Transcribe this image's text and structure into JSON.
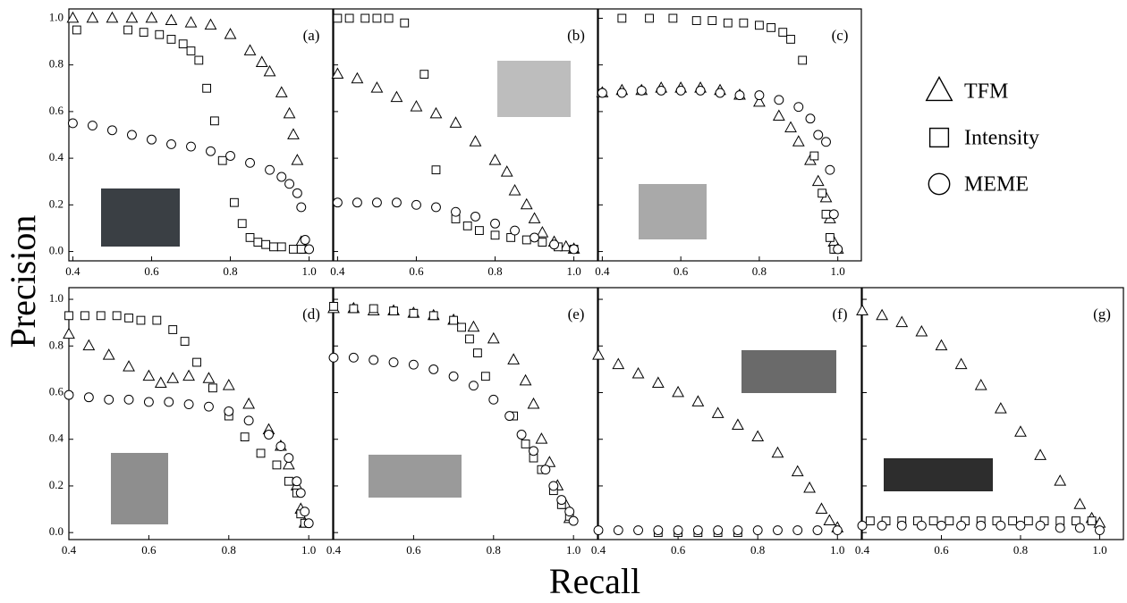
{
  "figure": {
    "ylabel": "Precision",
    "xlabel": "Recall"
  },
  "chart_data": [
    {
      "type": "scatter",
      "title": "(a)",
      "xlim": [
        0.39,
        1.06
      ],
      "ylim": [
        -0.04,
        1.04
      ],
      "ytick_labels": true,
      "xticks": [
        0.4,
        0.6,
        0.8,
        {
          "value": 1,
          "label": "1.0"
        }
      ],
      "yticks": [
        {
          "value": 0,
          "label": "0.0"
        },
        0.2,
        0.4,
        0.6,
        0.8,
        {
          "value": 1,
          "label": "1.0"
        }
      ],
      "series": [
        {
          "name": "TFM",
          "marker": "triangle",
          "color": "#000000",
          "x": [
            0.4,
            0.45,
            0.5,
            0.55,
            0.6,
            0.65,
            0.7,
            0.75,
            0.8,
            0.85,
            0.88,
            0.9,
            0.93,
            0.95,
            0.96,
            0.97,
            0.98,
            0.99
          ],
          "values": [
            1.0,
            1.0,
            1.0,
            1.0,
            1.0,
            0.99,
            0.98,
            0.97,
            0.93,
            0.86,
            0.81,
            0.77,
            0.68,
            0.59,
            0.5,
            0.39,
            0.04,
            0.01
          ]
        },
        {
          "name": "Intensity",
          "marker": "square",
          "color": "#000000",
          "x": [
            0.41,
            0.54,
            0.58,
            0.62,
            0.65,
            0.68,
            0.7,
            0.72,
            0.74,
            0.76,
            0.78,
            0.81,
            0.83,
            0.85,
            0.87,
            0.89,
            0.91,
            0.93,
            0.96,
            0.98
          ],
          "values": [
            0.95,
            0.95,
            0.94,
            0.93,
            0.91,
            0.89,
            0.86,
            0.82,
            0.7,
            0.56,
            0.39,
            0.21,
            0.12,
            0.06,
            0.04,
            0.03,
            0.02,
            0.02,
            0.01,
            0.01
          ]
        },
        {
          "name": "MEME",
          "marker": "circle",
          "color": "#000000",
          "x": [
            0.4,
            0.45,
            0.5,
            0.55,
            0.6,
            0.65,
            0.7,
            0.75,
            0.8,
            0.85,
            0.9,
            0.93,
            0.95,
            0.97,
            0.98,
            0.99,
            1.0
          ],
          "values": [
            0.55,
            0.54,
            0.52,
            0.5,
            0.48,
            0.46,
            0.45,
            0.43,
            0.41,
            0.38,
            0.35,
            0.32,
            0.29,
            0.25,
            0.19,
            0.05,
            0.01
          ]
        }
      ]
    },
    {
      "type": "scatter",
      "title": "(b)",
      "xlim": [
        0.39,
        1.06
      ],
      "ylim": [
        -0.04,
        1.04
      ],
      "ytick_labels": false,
      "xticks": [
        0.4,
        0.6,
        0.8,
        {
          "value": 1,
          "label": "1.0"
        }
      ],
      "yticks": [
        {
          "value": 0,
          "label": "0.0"
        },
        0.2,
        0.4,
        0.6,
        0.8,
        {
          "value": 1,
          "label": "1.0"
        }
      ],
      "series": [
        {
          "name": "TFM",
          "marker": "triangle",
          "color": "#000000",
          "x": [
            0.4,
            0.45,
            0.5,
            0.55,
            0.6,
            0.65,
            0.7,
            0.75,
            0.8,
            0.83,
            0.85,
            0.88,
            0.9,
            0.92,
            0.95,
            0.98,
            1.0
          ],
          "values": [
            0.76,
            0.74,
            0.7,
            0.66,
            0.62,
            0.59,
            0.55,
            0.47,
            0.39,
            0.34,
            0.26,
            0.2,
            0.14,
            0.08,
            0.04,
            0.02,
            0.01
          ]
        },
        {
          "name": "Intensity",
          "marker": "square",
          "color": "#000000",
          "x": [
            0.4,
            0.43,
            0.47,
            0.5,
            0.53,
            0.57,
            0.62,
            0.65,
            0.7,
            0.73,
            0.76,
            0.8,
            0.84,
            0.88,
            0.92,
            0.96,
            1.0
          ],
          "values": [
            1.0,
            1.0,
            1.0,
            1.0,
            1.0,
            0.98,
            0.76,
            0.35,
            0.14,
            0.11,
            0.09,
            0.07,
            0.06,
            0.05,
            0.04,
            0.02,
            0.01
          ]
        },
        {
          "name": "MEME",
          "marker": "circle",
          "color": "#000000",
          "x": [
            0.4,
            0.45,
            0.5,
            0.55,
            0.6,
            0.65,
            0.7,
            0.75,
            0.8,
            0.85,
            0.9,
            0.95,
            1.0
          ],
          "values": [
            0.21,
            0.21,
            0.21,
            0.21,
            0.2,
            0.19,
            0.17,
            0.15,
            0.12,
            0.09,
            0.06,
            0.03,
            0.01
          ]
        }
      ]
    },
    {
      "type": "scatter",
      "title": "(c)",
      "xlim": [
        0.39,
        1.06
      ],
      "ylim": [
        -0.04,
        1.04
      ],
      "ytick_labels": false,
      "xticks": [
        0.4,
        0.6,
        0.8,
        {
          "value": 1,
          "label": "1.0"
        }
      ],
      "yticks": [
        {
          "value": 0,
          "label": "0.0"
        },
        0.2,
        0.4,
        0.6,
        0.8,
        {
          "value": 1,
          "label": "1.0"
        }
      ],
      "series": [
        {
          "name": "TFM",
          "marker": "triangle",
          "color": "#000000",
          "x": [
            0.4,
            0.45,
            0.5,
            0.55,
            0.6,
            0.65,
            0.7,
            0.75,
            0.8,
            0.85,
            0.88,
            0.9,
            0.93,
            0.95,
            0.97,
            0.98,
            0.99,
            1.0
          ],
          "values": [
            0.68,
            0.69,
            0.69,
            0.7,
            0.7,
            0.7,
            0.69,
            0.67,
            0.64,
            0.58,
            0.53,
            0.47,
            0.39,
            0.3,
            0.23,
            0.14,
            0.04,
            0.01
          ]
        },
        {
          "name": "Intensity",
          "marker": "square",
          "color": "#000000",
          "x": [
            0.45,
            0.52,
            0.58,
            0.64,
            0.68,
            0.72,
            0.76,
            0.8,
            0.83,
            0.86,
            0.88,
            0.91,
            0.94,
            0.96,
            0.97,
            0.98,
            0.99
          ],
          "values": [
            1.0,
            1.0,
            1.0,
            0.99,
            0.99,
            0.98,
            0.98,
            0.97,
            0.96,
            0.94,
            0.91,
            0.82,
            0.41,
            0.25,
            0.16,
            0.06,
            0.01
          ]
        },
        {
          "name": "MEME",
          "marker": "circle",
          "color": "#000000",
          "x": [
            0.4,
            0.45,
            0.5,
            0.55,
            0.6,
            0.65,
            0.7,
            0.75,
            0.8,
            0.85,
            0.9,
            0.93,
            0.95,
            0.97,
            0.98,
            0.99,
            1.0
          ],
          "values": [
            0.68,
            0.68,
            0.69,
            0.69,
            0.69,
            0.69,
            0.68,
            0.67,
            0.67,
            0.65,
            0.62,
            0.57,
            0.5,
            0.47,
            0.35,
            0.16,
            0.01
          ]
        }
      ]
    },
    {
      "type": "scatter",
      "title": "(d)",
      "xlim": [
        0.4,
        1.06
      ],
      "ylim": [
        -0.03,
        1.05
      ],
      "ytick_labels": true,
      "xticks": [
        0.4,
        0.6,
        0.8,
        {
          "value": 1,
          "label": "1.0"
        }
      ],
      "yticks": [
        {
          "value": 0,
          "label": "0.0"
        },
        0.2,
        0.4,
        0.6,
        0.8,
        {
          "value": 1,
          "label": "1.0"
        }
      ],
      "series": [
        {
          "name": "TFM",
          "marker": "triangle",
          "color": "#000000",
          "x": [
            0.4,
            0.45,
            0.5,
            0.55,
            0.6,
            0.63,
            0.66,
            0.7,
            0.75,
            0.8,
            0.85,
            0.9,
            0.93,
            0.95,
            0.97,
            0.98,
            0.99
          ],
          "values": [
            0.85,
            0.8,
            0.76,
            0.71,
            0.67,
            0.64,
            0.66,
            0.67,
            0.66,
            0.63,
            0.55,
            0.44,
            0.37,
            0.29,
            0.2,
            0.1,
            0.04
          ]
        },
        {
          "name": "Intensity",
          "marker": "square",
          "color": "#000000",
          "x": [
            0.4,
            0.44,
            0.48,
            0.52,
            0.55,
            0.58,
            0.62,
            0.66,
            0.69,
            0.72,
            0.76,
            0.8,
            0.84,
            0.88,
            0.92,
            0.95,
            0.97,
            0.98,
            0.99
          ],
          "values": [
            0.93,
            0.93,
            0.93,
            0.93,
            0.92,
            0.91,
            0.91,
            0.87,
            0.82,
            0.73,
            0.62,
            0.5,
            0.41,
            0.34,
            0.29,
            0.22,
            0.17,
            0.08,
            0.04
          ]
        },
        {
          "name": "MEME",
          "marker": "circle",
          "color": "#000000",
          "x": [
            0.4,
            0.45,
            0.5,
            0.55,
            0.6,
            0.65,
            0.7,
            0.75,
            0.8,
            0.85,
            0.9,
            0.93,
            0.95,
            0.97,
            0.98,
            0.99,
            1.0
          ],
          "values": [
            0.59,
            0.58,
            0.57,
            0.57,
            0.56,
            0.56,
            0.55,
            0.54,
            0.52,
            0.48,
            0.42,
            0.37,
            0.32,
            0.22,
            0.17,
            0.09,
            0.04
          ]
        }
      ]
    },
    {
      "type": "scatter",
      "title": "(e)",
      "xlim": [
        0.4,
        1.06
      ],
      "ylim": [
        -0.03,
        1.05
      ],
      "ytick_labels": false,
      "xticks": [
        0.4,
        0.6,
        0.8,
        {
          "value": 1,
          "label": "1.0"
        }
      ],
      "yticks": [
        {
          "value": 0,
          "label": "0.0"
        },
        0.2,
        0.4,
        0.6,
        0.8,
        {
          "value": 1,
          "label": "1.0"
        }
      ],
      "series": [
        {
          "name": "TFM",
          "marker": "triangle",
          "color": "#000000",
          "x": [
            0.4,
            0.45,
            0.5,
            0.55,
            0.6,
            0.65,
            0.7,
            0.75,
            0.8,
            0.85,
            0.88,
            0.9,
            0.92,
            0.94,
            0.96,
            0.98,
            0.99
          ],
          "values": [
            0.96,
            0.96,
            0.95,
            0.95,
            0.94,
            0.93,
            0.91,
            0.88,
            0.83,
            0.74,
            0.65,
            0.55,
            0.4,
            0.3,
            0.2,
            0.12,
            0.06
          ]
        },
        {
          "name": "Intensity",
          "marker": "square",
          "color": "#000000",
          "x": [
            0.4,
            0.45,
            0.5,
            0.55,
            0.6,
            0.65,
            0.7,
            0.72,
            0.74,
            0.76,
            0.78,
            0.85,
            0.88,
            0.9,
            0.92,
            0.95,
            0.97,
            0.99
          ],
          "values": [
            0.97,
            0.96,
            0.96,
            0.95,
            0.94,
            0.93,
            0.91,
            0.88,
            0.83,
            0.77,
            0.67,
            0.5,
            0.38,
            0.32,
            0.27,
            0.18,
            0.12,
            0.07
          ]
        },
        {
          "name": "MEME",
          "marker": "circle",
          "color": "#000000",
          "x": [
            0.4,
            0.45,
            0.5,
            0.55,
            0.6,
            0.65,
            0.7,
            0.75,
            0.8,
            0.84,
            0.87,
            0.9,
            0.93,
            0.95,
            0.97,
            0.99,
            1.0
          ],
          "values": [
            0.75,
            0.75,
            0.74,
            0.73,
            0.72,
            0.7,
            0.67,
            0.63,
            0.57,
            0.5,
            0.42,
            0.35,
            0.27,
            0.2,
            0.14,
            0.09,
            0.05
          ]
        }
      ]
    },
    {
      "type": "scatter",
      "title": "(f)",
      "xlim": [
        0.4,
        1.06
      ],
      "ylim": [
        -0.03,
        1.05
      ],
      "ytick_labels": false,
      "xticks": [
        0.4,
        0.6,
        0.8,
        {
          "value": 1,
          "label": "1.0"
        }
      ],
      "yticks": [
        {
          "value": 0,
          "label": "0.0"
        },
        0.2,
        0.4,
        0.6,
        0.8,
        {
          "value": 1,
          "label": "1.0"
        }
      ],
      "series": [
        {
          "name": "TFM",
          "marker": "triangle",
          "color": "#000000",
          "x": [
            0.4,
            0.45,
            0.5,
            0.55,
            0.6,
            0.65,
            0.7,
            0.75,
            0.8,
            0.85,
            0.9,
            0.93,
            0.96,
            0.98,
            1.0
          ],
          "values": [
            0.76,
            0.72,
            0.68,
            0.64,
            0.6,
            0.56,
            0.51,
            0.46,
            0.41,
            0.34,
            0.26,
            0.19,
            0.1,
            0.05,
            0.02
          ]
        },
        {
          "name": "Intensity",
          "marker": "square",
          "color": "#000000",
          "x": [
            0.55,
            0.6,
            0.65,
            0.7,
            0.75
          ],
          "values": [
            0.0,
            0.0,
            0.0,
            0.0,
            0.0
          ]
        },
        {
          "name": "MEME",
          "marker": "circle",
          "color": "#000000",
          "x": [
            0.4,
            0.45,
            0.5,
            0.55,
            0.6,
            0.65,
            0.7,
            0.75,
            0.8,
            0.85,
            0.9,
            0.95,
            1.0
          ],
          "values": [
            0.01,
            0.01,
            0.01,
            0.01,
            0.01,
            0.01,
            0.01,
            0.01,
            0.01,
            0.01,
            0.01,
            0.01,
            0.01
          ]
        }
      ]
    },
    {
      "type": "scatter",
      "title": "(g)",
      "xlim": [
        0.4,
        1.06
      ],
      "ylim": [
        -0.03,
        1.05
      ],
      "ytick_labels": false,
      "xticks": [
        0.4,
        0.6,
        0.8,
        {
          "value": 1,
          "label": "1.0"
        }
      ],
      "yticks": [
        {
          "value": 0,
          "label": "0.0"
        },
        0.2,
        0.4,
        0.6,
        0.8,
        {
          "value": 1,
          "label": "1.0"
        }
      ],
      "series": [
        {
          "name": "TFM",
          "marker": "triangle",
          "color": "#000000",
          "x": [
            0.4,
            0.45,
            0.5,
            0.55,
            0.6,
            0.65,
            0.7,
            0.75,
            0.8,
            0.85,
            0.9,
            0.95,
            0.98,
            1.0
          ],
          "values": [
            0.95,
            0.93,
            0.9,
            0.86,
            0.8,
            0.72,
            0.63,
            0.53,
            0.43,
            0.33,
            0.22,
            0.12,
            0.06,
            0.04
          ]
        },
        {
          "name": "Intensity",
          "marker": "square",
          "color": "#000000",
          "x": [
            0.42,
            0.46,
            0.5,
            0.54,
            0.58,
            0.62,
            0.66,
            0.7,
            0.74,
            0.78,
            0.82,
            0.86,
            0.9,
            0.94,
            0.98
          ],
          "values": [
            0.05,
            0.05,
            0.05,
            0.05,
            0.05,
            0.05,
            0.05,
            0.05,
            0.05,
            0.05,
            0.05,
            0.05,
            0.05,
            0.05,
            0.05
          ]
        },
        {
          "name": "MEME",
          "marker": "circle",
          "color": "#000000",
          "x": [
            0.4,
            0.45,
            0.5,
            0.55,
            0.6,
            0.65,
            0.7,
            0.75,
            0.8,
            0.85,
            0.9,
            0.95,
            1.0
          ],
          "values": [
            0.03,
            0.03,
            0.03,
            0.03,
            0.03,
            0.03,
            0.03,
            0.03,
            0.03,
            0.03,
            0.02,
            0.02,
            0.01
          ]
        }
      ]
    }
  ]
}
